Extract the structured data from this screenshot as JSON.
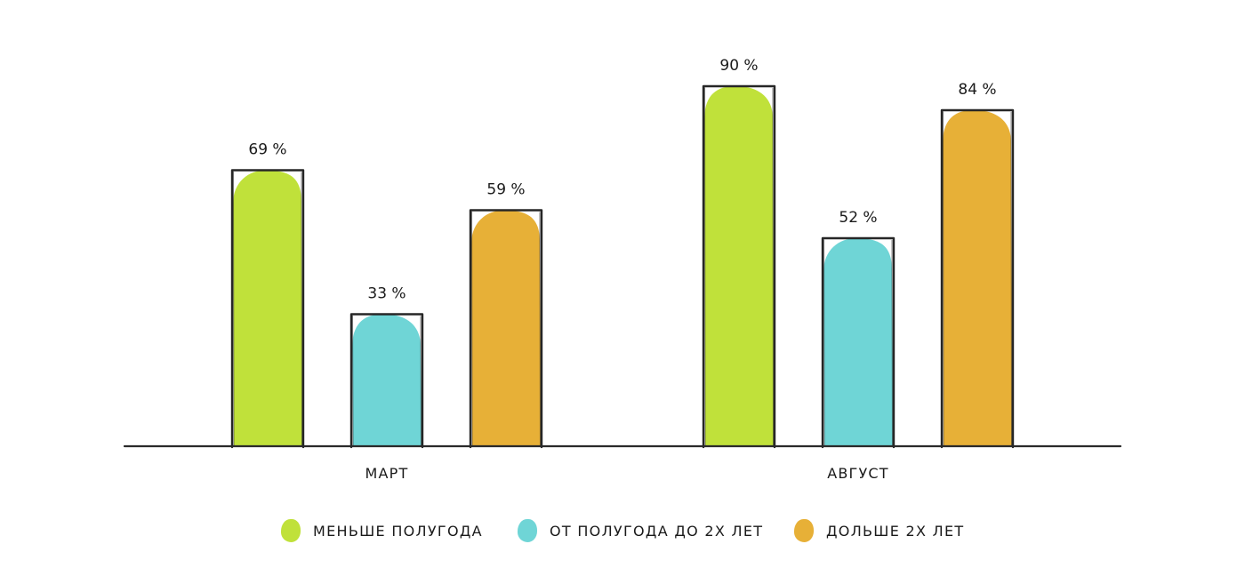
{
  "chart_data": {
    "type": "bar",
    "categories": [
      "МАРТ",
      "АВГУСТ"
    ],
    "series": [
      {
        "name": "МЕНЬШЕ ПОЛУГОДА",
        "color": "#c0e13a",
        "values": [
          69,
          90
        ],
        "labels": [
          "69 %",
          "90 %"
        ]
      },
      {
        "name": "ОТ ПОЛУГОДА ДО 2Х ЛЕТ",
        "color": "#6fd5d6",
        "values": [
          33,
          52
        ],
        "labels": [
          "33 %",
          "52 %"
        ]
      },
      {
        "name": "ДОЛЬШЕ 2Х ЛЕТ",
        "color": "#e7b037",
        "values": [
          59,
          84
        ],
        "labels": [
          "59 %",
          "84 %"
        ]
      }
    ],
    "ylim": [
      0,
      100
    ],
    "grid": false,
    "legend": "bottom",
    "title": "",
    "xlabel": "",
    "ylabel": ""
  }
}
